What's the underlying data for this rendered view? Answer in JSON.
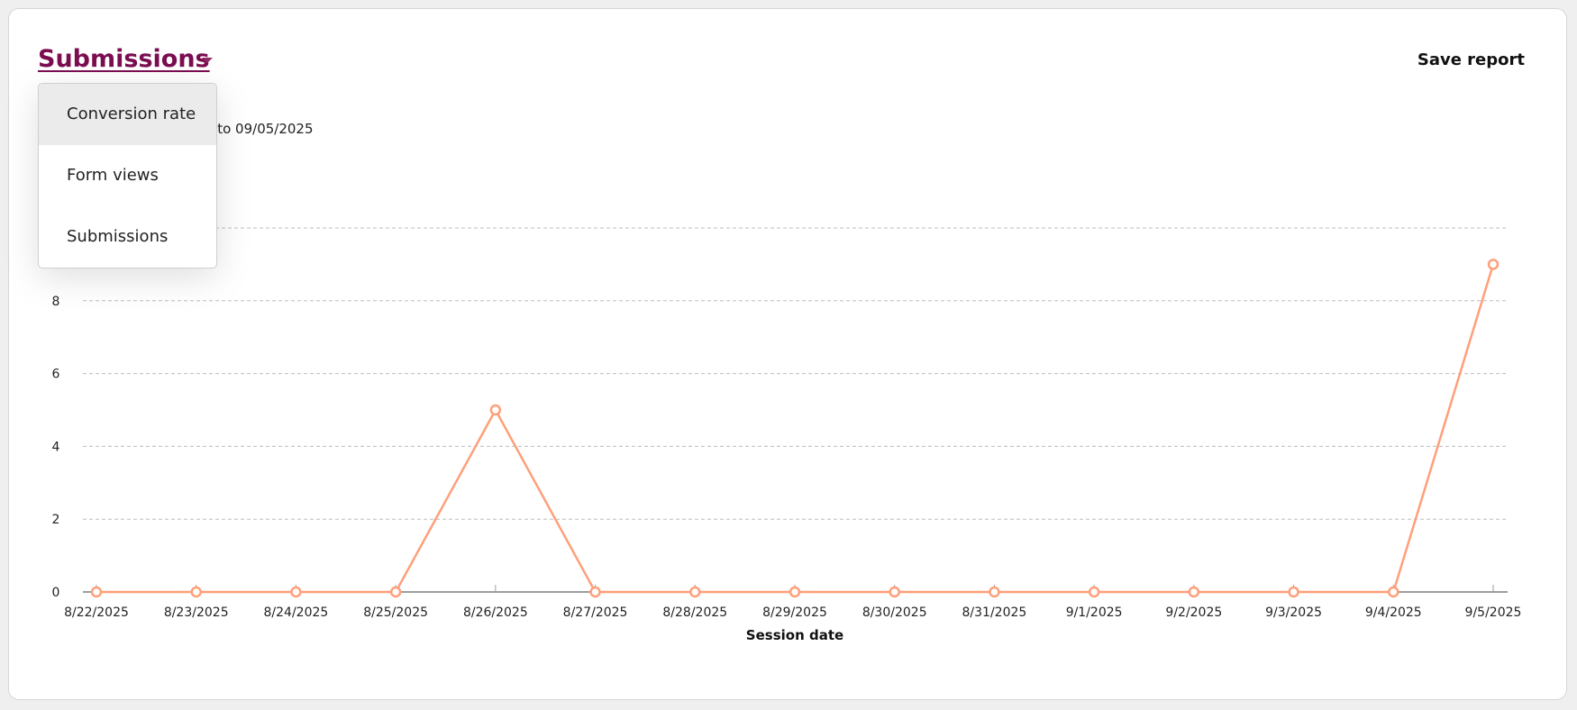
{
  "header": {
    "title": "Submissions",
    "save_label": "Save report",
    "date_range": "08/22/2025 to 09/05/2025"
  },
  "dropdown": {
    "items": [
      "Conversion rate",
      "Form views",
      "Submissions"
    ],
    "hovered": "Conversion rate"
  },
  "colors": {
    "title": "#7b0d50",
    "series": "#ff9f7a",
    "grid": "#bdbdbd"
  },
  "icons": {
    "caret": "caret-down-icon"
  },
  "chart_data": {
    "type": "line",
    "xlabel": "Session date",
    "ylabel": "",
    "categories": [
      "8/22/2025",
      "8/23/2025",
      "8/24/2025",
      "8/25/2025",
      "8/26/2025",
      "8/27/2025",
      "8/28/2025",
      "8/29/2025",
      "8/30/2025",
      "8/31/2025",
      "9/1/2025",
      "9/2/2025",
      "9/3/2025",
      "9/4/2025",
      "9/5/2025"
    ],
    "values": [
      0,
      0,
      0,
      0,
      5,
      0,
      0,
      0,
      0,
      0,
      0,
      0,
      0,
      0,
      9
    ],
    "yticks": [
      0,
      2,
      4,
      6,
      8,
      10
    ],
    "ylim": [
      0,
      10
    ],
    "grid": true,
    "markers": "hollow-circle"
  }
}
